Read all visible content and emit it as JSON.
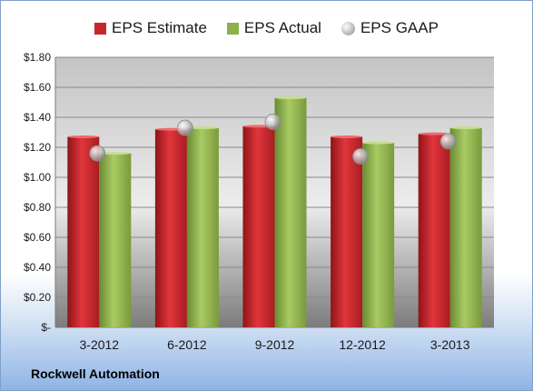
{
  "chart_data": {
    "type": "bar",
    "title": "",
    "xlabel": "",
    "ylabel": "",
    "categories": [
      "3-2012",
      "6-2012",
      "9-2012",
      "12-2012",
      "3-2013"
    ],
    "series": [
      {
        "name": "EPS Estimate",
        "type": "bar",
        "color": "#c8262c",
        "values": [
          1.27,
          1.32,
          1.34,
          1.27,
          1.29
        ]
      },
      {
        "name": "EPS Actual",
        "type": "bar",
        "color": "#8db04a",
        "values": [
          1.16,
          1.33,
          1.53,
          1.23,
          1.33
        ]
      },
      {
        "name": "EPS GAAP",
        "type": "scatter",
        "color": "#b0b0b0",
        "values": [
          1.16,
          1.33,
          1.37,
          1.14,
          1.24
        ]
      }
    ],
    "ylim": [
      0,
      1.8
    ],
    "yticks": [
      0,
      0.2,
      0.4,
      0.6,
      0.8,
      1.0,
      1.2,
      1.4,
      1.6,
      1.8
    ],
    "ytick_labels": [
      "$-",
      "$0.20",
      "$0.40",
      "$0.60",
      "$0.80",
      "$1.00",
      "$1.20",
      "$1.40",
      "$1.60",
      "$1.80"
    ],
    "grid": true,
    "legend_position": "top"
  },
  "legend": {
    "estimate": "EPS Estimate",
    "actual": "EPS Actual",
    "gaap": "EPS GAAP"
  },
  "footer": {
    "company": "Rockwell Automation"
  }
}
